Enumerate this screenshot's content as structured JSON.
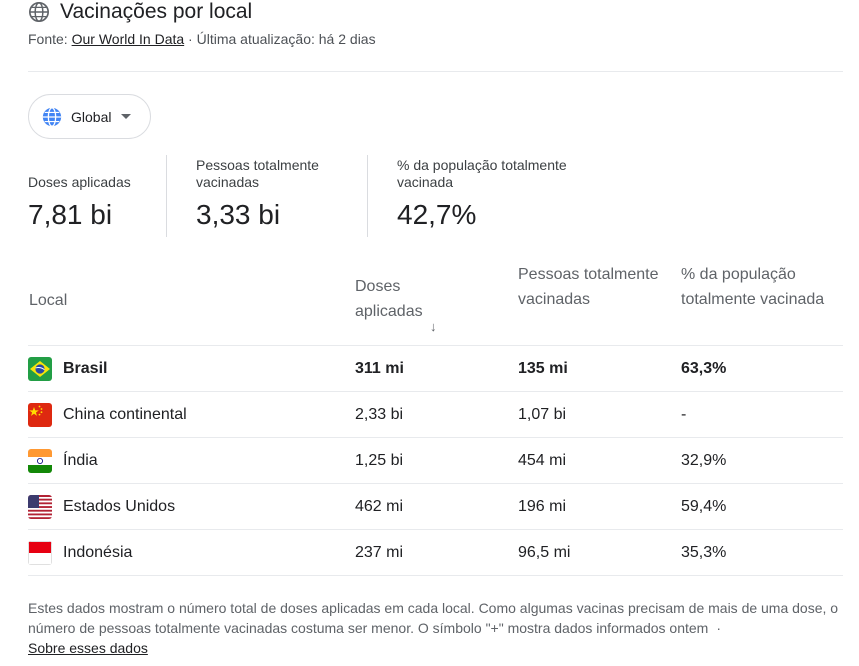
{
  "header": {
    "title": "Vacinações por local",
    "source_prefix": "Fonte:",
    "source_link": "Our World In Data",
    "updated": "· Última atualização: há 2 dias"
  },
  "region_selector": {
    "label": "Global"
  },
  "stats": [
    {
      "label": "Doses aplicadas",
      "value": "7,81 bi"
    },
    {
      "label": "Pessoas totalmente vacinadas",
      "value": "3,33 bi"
    },
    {
      "label": "% da população totalmente vacinada",
      "value": "42,7%"
    }
  ],
  "table": {
    "headers": {
      "location": "Local",
      "doses": "Doses aplicadas",
      "sort_icon": "↓",
      "people": "Pessoas totalmente vacinadas",
      "percent": "% da população totalmente vacinada"
    },
    "rows": [
      {
        "flag": "brazil-flag",
        "location": "Brasil",
        "doses": "311 mi",
        "people": "135 mi",
        "percent": "63,3%"
      },
      {
        "flag": "china-flag",
        "location": "China continental",
        "doses": "2,33 bi",
        "people": "1,07 bi",
        "percent": "-"
      },
      {
        "flag": "india-flag",
        "location": "Índia",
        "doses": "1,25 bi",
        "people": "454 mi",
        "percent": "32,9%"
      },
      {
        "flag": "usa-flag",
        "location": "Estados Unidos",
        "doses": "462 mi",
        "people": "196 mi",
        "percent": "59,4%"
      },
      {
        "flag": "indonesia-flag",
        "location": "Indonésia",
        "doses": "237 mi",
        "people": "96,5 mi",
        "percent": "35,3%"
      }
    ]
  },
  "footnote": {
    "text": "Estes dados mostram o número total de doses aplicadas em cada local. Como algumas vacinas precisam de mais de uma dose, o número de pessoas totalmente vacinadas costuma ser menor. O símbolo \"+\" mostra dados informados ontem",
    "separator": "·",
    "link": "Sobre esses dados"
  }
}
